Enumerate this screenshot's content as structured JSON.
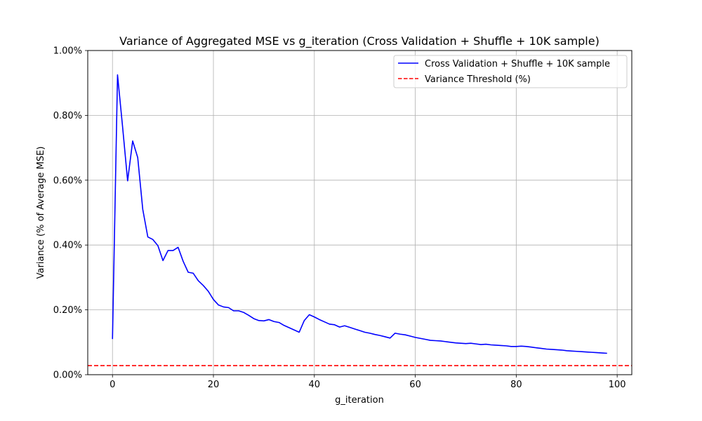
{
  "chart_data": {
    "type": "line",
    "title": "Variance of Aggregated MSE vs g_iteration (Cross Validation + Shuffle + 10K sample)",
    "xlabel": "g_iteration",
    "ylabel": "Variance (% of Average MSE)",
    "xlim": [
      -4.9,
      102.9
    ],
    "ylim": [
      0.0,
      1.0
    ],
    "xticks": [
      0,
      20,
      40,
      60,
      80,
      100
    ],
    "xtick_labels": [
      "0",
      "20",
      "40",
      "60",
      "80",
      "100"
    ],
    "yticks": [
      0.0,
      0.2,
      0.4,
      0.6,
      0.8,
      1.0
    ],
    "ytick_labels": [
      "0.00%",
      "0.20%",
      "0.40%",
      "0.60%",
      "0.80%",
      "1.00%"
    ],
    "grid": true,
    "legend_position": "top-right",
    "series": [
      {
        "name": "Cross Validation + Shuffle + 10K sample",
        "color": "#0000ff",
        "style": "solid",
        "x": [
          0,
          1,
          2,
          3,
          4,
          5,
          6,
          7,
          8,
          9,
          10,
          11,
          12,
          13,
          14,
          15,
          16,
          17,
          18,
          19,
          20,
          21,
          22,
          23,
          24,
          25,
          26,
          27,
          28,
          29,
          30,
          31,
          32,
          33,
          34,
          35,
          36,
          37,
          38,
          39,
          40,
          41,
          42,
          43,
          44,
          45,
          46,
          47,
          48,
          49,
          50,
          51,
          52,
          53,
          54,
          55,
          56,
          57,
          58,
          59,
          60,
          61,
          62,
          63,
          64,
          65,
          66,
          67,
          68,
          69,
          70,
          71,
          72,
          73,
          74,
          75,
          76,
          77,
          78,
          79,
          80,
          81,
          82,
          83,
          84,
          85,
          86,
          87,
          88,
          89,
          90,
          91,
          92,
          93,
          94,
          95,
          96,
          97,
          98
        ],
        "y": [
          0.11,
          0.925,
          0.765,
          0.598,
          0.721,
          0.67,
          0.51,
          0.425,
          0.417,
          0.398,
          0.352,
          0.383,
          0.383,
          0.393,
          0.35,
          0.316,
          0.313,
          0.29,
          0.275,
          0.257,
          0.232,
          0.215,
          0.209,
          0.207,
          0.197,
          0.197,
          0.192,
          0.183,
          0.173,
          0.167,
          0.166,
          0.17,
          0.164,
          0.161,
          0.152,
          0.145,
          0.138,
          0.131,
          0.167,
          0.185,
          0.178,
          0.17,
          0.163,
          0.156,
          0.154,
          0.147,
          0.151,
          0.146,
          0.141,
          0.136,
          0.131,
          0.128,
          0.124,
          0.121,
          0.117,
          0.113,
          0.128,
          0.125,
          0.123,
          0.119,
          0.115,
          0.112,
          0.109,
          0.106,
          0.105,
          0.104,
          0.102,
          0.1,
          0.098,
          0.097,
          0.096,
          0.097,
          0.095,
          0.093,
          0.094,
          0.092,
          0.091,
          0.09,
          0.089,
          0.087,
          0.087,
          0.088,
          0.087,
          0.085,
          0.083,
          0.081,
          0.079,
          0.078,
          0.077,
          0.076,
          0.074,
          0.073,
          0.072,
          0.071,
          0.07,
          0.069,
          0.068,
          0.067,
          0.066
        ]
      },
      {
        "name": "Variance Threshold (%)",
        "color": "#ff0000",
        "style": "dashed",
        "type": "hline",
        "y_value": 0.028
      }
    ]
  }
}
